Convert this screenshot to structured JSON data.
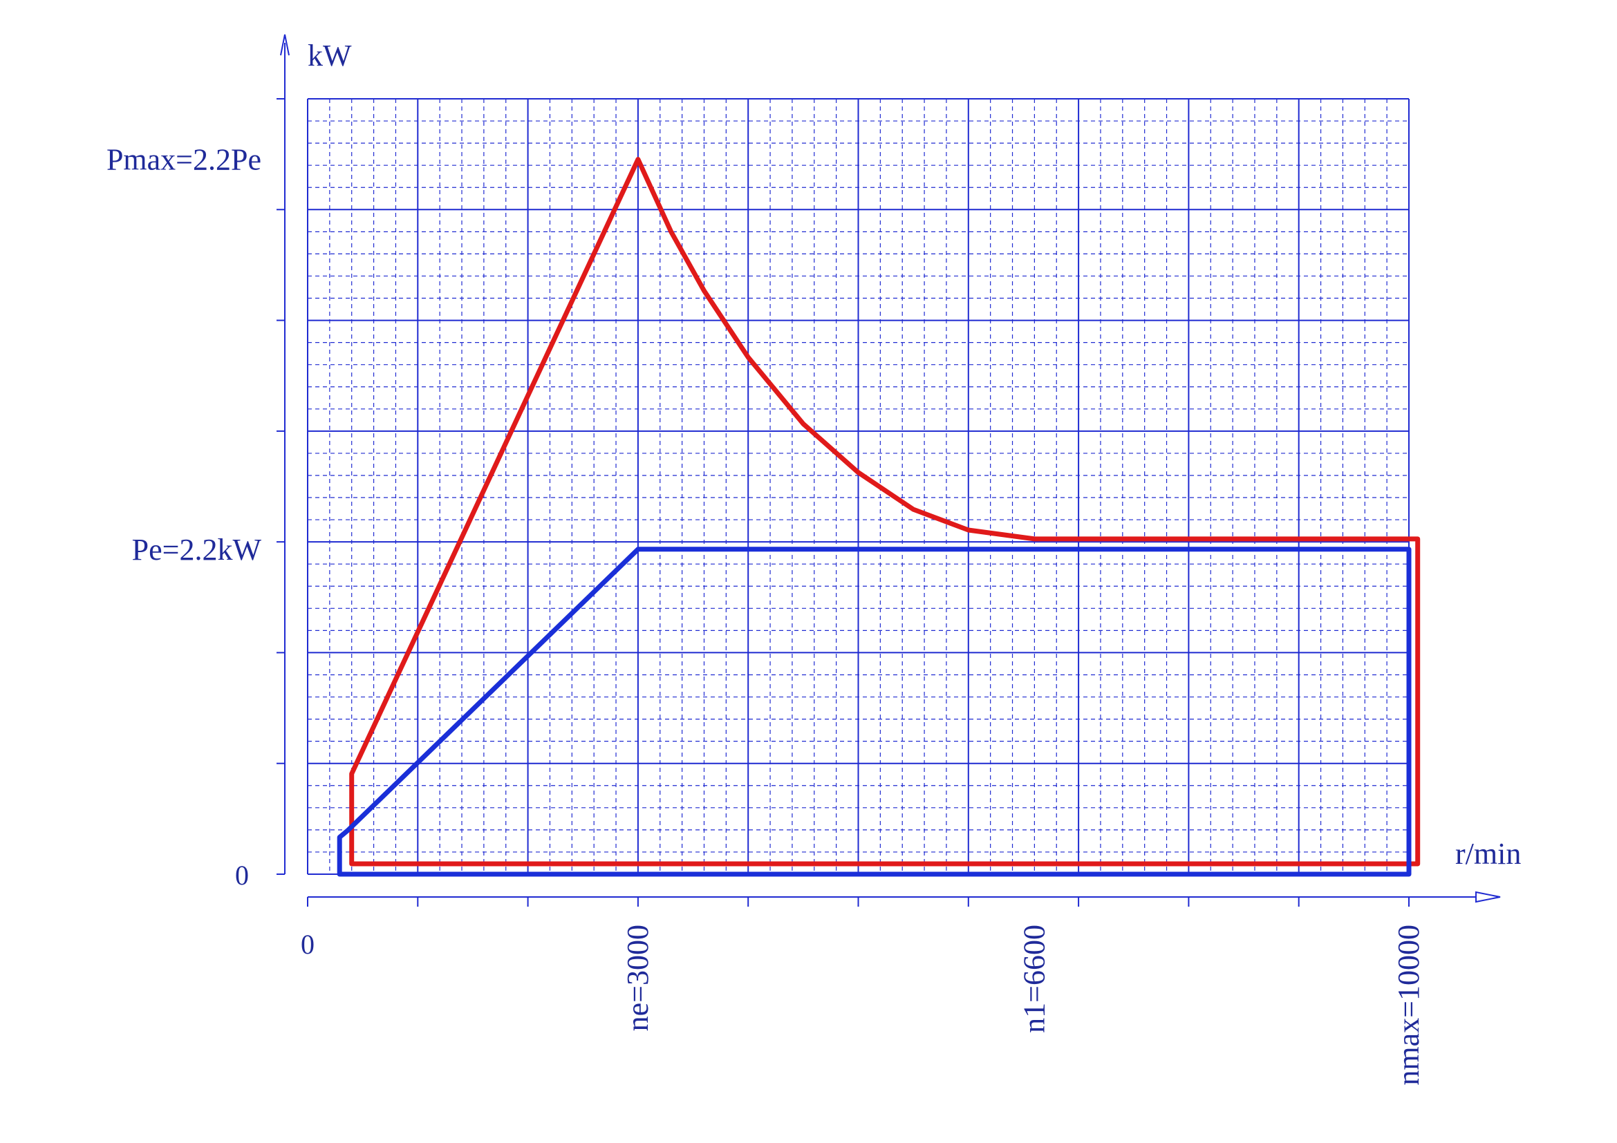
{
  "chart_data": {
    "type": "line",
    "title": "",
    "xlabel": "r/min",
    "ylabel": "kW",
    "origin_x_label": "0",
    "origin_y_label": "0",
    "x_ticks": [
      {
        "value": 3000,
        "label": "ne=3000"
      },
      {
        "value": 6600,
        "label": "n1=6600"
      },
      {
        "value": 10000,
        "label": "nmax=10000"
      }
    ],
    "y_ticks": [
      {
        "value": 2.2,
        "label": "Pe=2.2kW"
      },
      {
        "value": 4.84,
        "label": "Pmax=2.2Pe"
      }
    ],
    "xlim": [
      0,
      10000
    ],
    "ylim": [
      0,
      5.25
    ],
    "grid": true,
    "colors": {
      "grid": "#1f2ad1",
      "series_1": "#e01a1a",
      "series_2": "#1a2fd8",
      "text": "#1f2a99"
    },
    "series": [
      {
        "name": "",
        "color": "#e01a1a",
        "points": [
          [
            400,
            0.07
          ],
          [
            400,
            0.68
          ],
          [
            3000,
            4.84
          ],
          [
            3300,
            4.35
          ],
          [
            3600,
            3.95
          ],
          [
            4000,
            3.5
          ],
          [
            4500,
            3.05
          ],
          [
            5000,
            2.72
          ],
          [
            5500,
            2.47
          ],
          [
            6000,
            2.33
          ],
          [
            6600,
            2.27
          ],
          [
            10080,
            2.27
          ],
          [
            10080,
            0.07
          ],
          [
            400,
            0.07
          ]
        ]
      },
      {
        "name": "",
        "color": "#1a2fd8",
        "points": [
          [
            290,
            0.0
          ],
          [
            290,
            0.25
          ],
          [
            370,
            0.3
          ],
          [
            3000,
            2.2
          ],
          [
            10000,
            2.2
          ],
          [
            10000,
            0.0
          ],
          [
            290,
            0.0
          ]
        ]
      }
    ]
  }
}
